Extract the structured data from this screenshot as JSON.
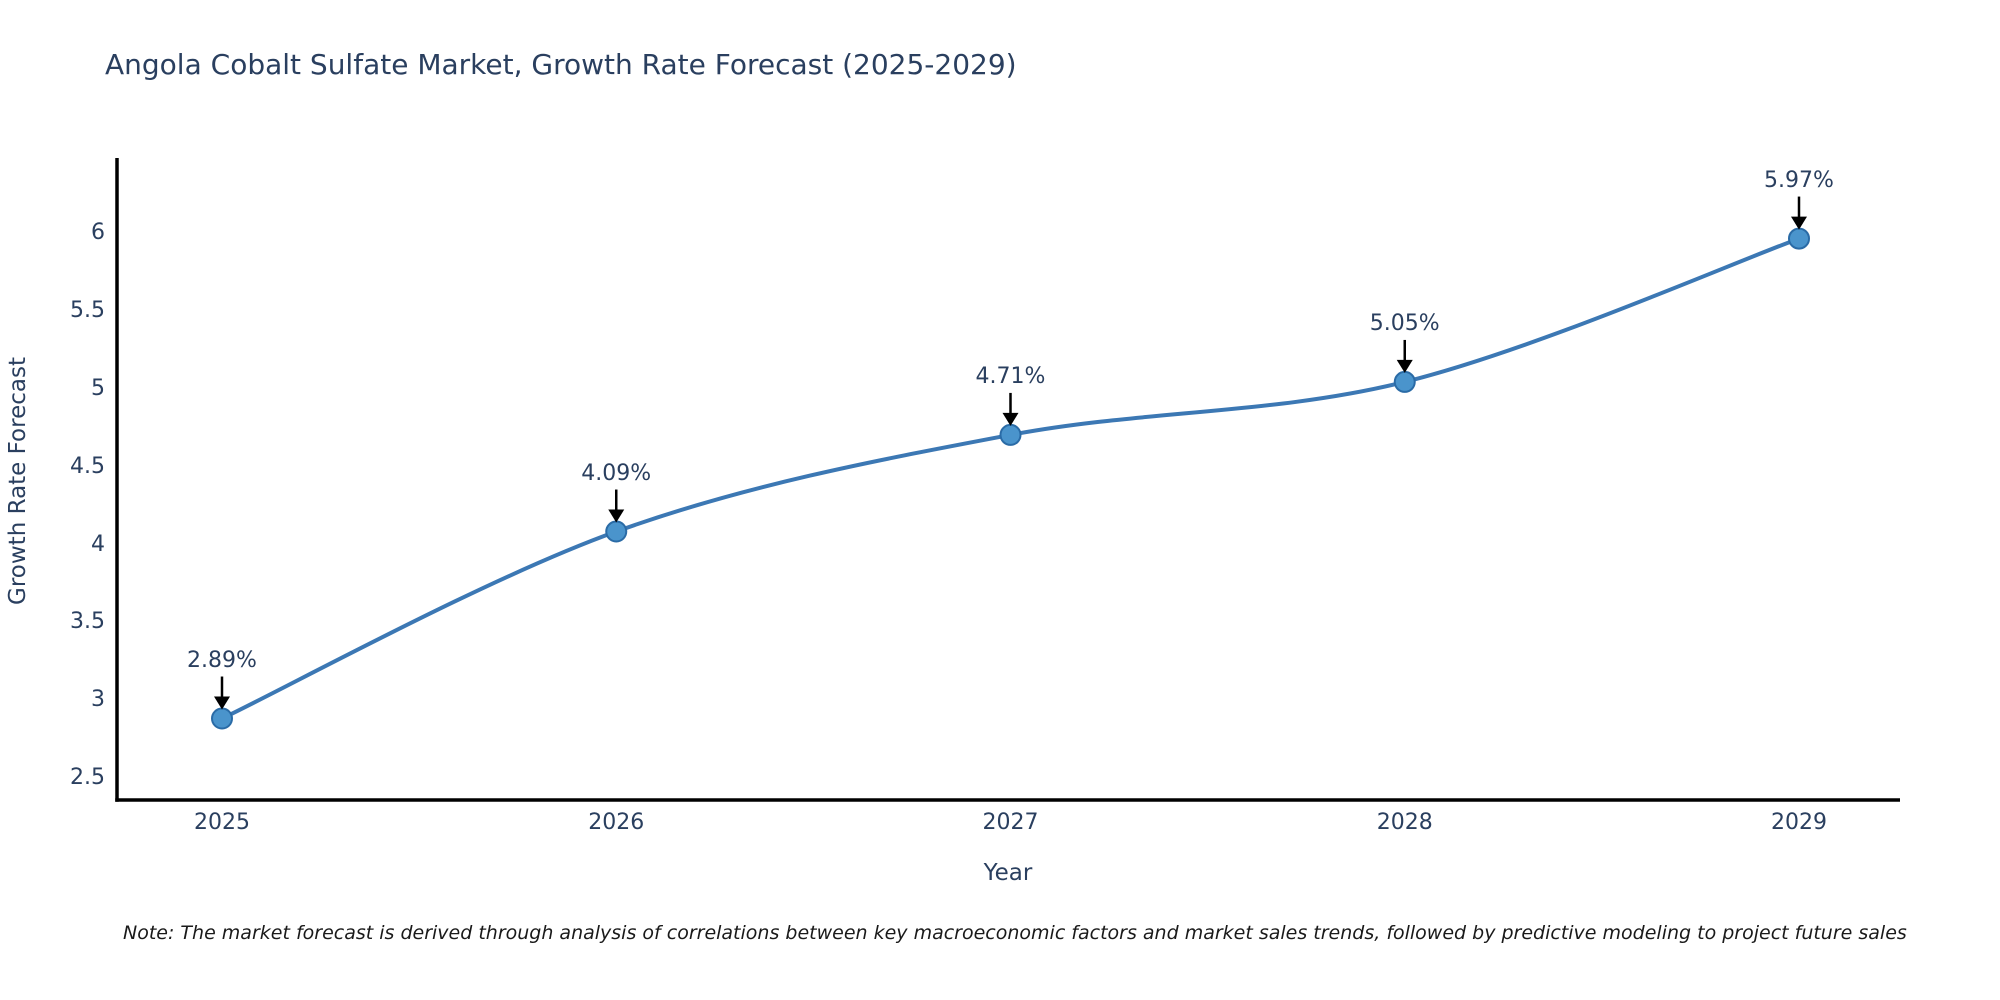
{
  "page": {
    "background": "#ffffff"
  },
  "chart_data": {
    "type": "line",
    "title": "Angola Cobalt Sulfate Market, Growth Rate Forecast (2025-2029)",
    "xlabel": "Year",
    "ylabel": "Growth Rate Forecast",
    "categories": [
      "2025",
      "2026",
      "2027",
      "2028",
      "2029"
    ],
    "series": [
      {
        "name": "Growth Rate Forecast",
        "values": [
          2.89,
          4.09,
          4.71,
          5.05,
          5.97
        ]
      }
    ],
    "point_labels": [
      "2.89%",
      "4.09%",
      "4.71%",
      "5.05%",
      "5.97%"
    ],
    "ylim": [
      2.5,
      6
    ],
    "y_ticks": [
      "2.5",
      "3",
      "3.5",
      "4",
      "4.5",
      "5",
      "5.5",
      "6"
    ],
    "grid": false,
    "legend_position": "none",
    "line_shape": "spline",
    "colors": {
      "line": "#3c78b4",
      "marker_fill": "#4a94cc",
      "marker_edge": "#2a6ba6",
      "axis_line": "#000000",
      "label_text": "#2a3f5f",
      "annotation_arrow": "#000000",
      "note_text": "#1a1a1a"
    },
    "note": "Note: The market forecast is derived through analysis of correlations between key macroeconomic factors and market sales trends, followed by predictive modeling to project future sales"
  }
}
